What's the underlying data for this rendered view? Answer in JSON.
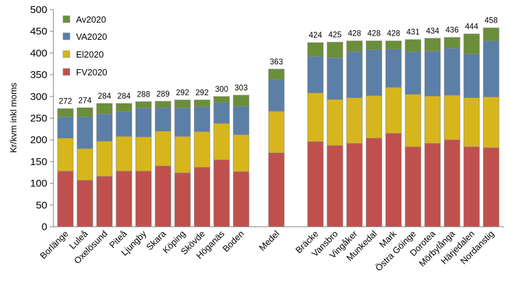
{
  "chart_data": {
    "type": "bar",
    "stacked": true,
    "ylabel": "Kr/kvm inkl moms",
    "ylim": [
      0,
      500
    ],
    "yticks": [
      0,
      50,
      100,
      150,
      200,
      250,
      300,
      350,
      400,
      450,
      500
    ],
    "grid": false,
    "legend_position": "top-left",
    "categories": [
      "Borlänge",
      "Luleå",
      "Oxelösund",
      "Piteå",
      "Ljungby",
      "Skara",
      "Köping",
      "Skövde",
      "Höganäs",
      "Boden",
      "Medel",
      "Bräcke",
      "Vansbro",
      "Vingåker",
      "Munkedal",
      "Mark",
      "Östra Göinge",
      "Dorotea",
      "Mörbylånga",
      "Härjedalen",
      "Nordanstig"
    ],
    "series": [
      {
        "name": "FV2020",
        "color": "#C0504D",
        "values": [
          128,
          107,
          116,
          128,
          128,
          140,
          124,
          137,
          154,
          127,
          170,
          196,
          187,
          192,
          204,
          215,
          184,
          192,
          200,
          184,
          182
        ]
      },
      {
        "name": "El2020",
        "color": "#D6B61C",
        "values": [
          76,
          73,
          81,
          80,
          79,
          80,
          84,
          82,
          84,
          85,
          96,
          112,
          106,
          105,
          98,
          106,
          121,
          109,
          103,
          113,
          117
        ]
      },
      {
        "name": "VA2020",
        "color": "#5B7FA6",
        "values": [
          49,
          73,
          63,
          57,
          66,
          54,
          65,
          57,
          48,
          65,
          73,
          84,
          96,
          106,
          106,
          88,
          98,
          103,
          108,
          101,
          129
        ]
      },
      {
        "name": "Av2020",
        "color": "#6B8E3A",
        "values": [
          19,
          21,
          24,
          19,
          15,
          15,
          19,
          16,
          14,
          26,
          24,
          32,
          36,
          25,
          20,
          19,
          28,
          30,
          25,
          46,
          30
        ]
      }
    ],
    "totals": [
      272,
      274,
      284,
      284,
      288,
      289,
      292,
      292,
      300,
      303,
      363,
      424,
      425,
      428,
      428,
      428,
      431,
      434,
      436,
      444,
      458
    ],
    "legend_order": [
      "Av2020",
      "VA2020",
      "El2020",
      "FV2020"
    ]
  }
}
